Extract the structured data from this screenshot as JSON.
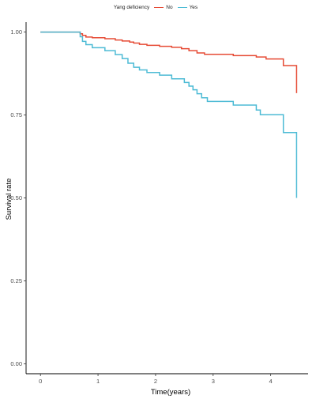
{
  "chart_data": {
    "type": "line",
    "xlabel": "Time(years)",
    "ylabel": "Survival rate",
    "xlim": [
      -0.25,
      4.65
    ],
    "ylim": [
      -0.03,
      1.03
    ],
    "x_ticks": [
      0,
      1,
      2,
      3,
      4
    ],
    "y_ticks": [
      0.0,
      0.25,
      0.5,
      0.75,
      1.0
    ],
    "y_tick_labels": [
      "0.00",
      "0.25",
      "0.50",
      "0.75",
      "1.00"
    ],
    "grid": false,
    "legend": {
      "title": "Yang deficiency",
      "placement": "top"
    },
    "series": [
      {
        "name": "No",
        "color": "#E64B35",
        "step": true,
        "x": [
          0,
          0.69,
          0.73,
          0.79,
          0.9,
          1.12,
          1.3,
          1.42,
          1.55,
          1.62,
          1.72,
          1.85,
          2.07,
          2.28,
          2.45,
          2.58,
          2.72,
          2.85,
          3.35,
          3.75,
          3.92,
          4.22,
          4.45,
          4.45
        ],
        "y": [
          1.0,
          0.995,
          0.99,
          0.985,
          0.983,
          0.98,
          0.976,
          0.973,
          0.97,
          0.967,
          0.963,
          0.96,
          0.957,
          0.954,
          0.95,
          0.944,
          0.937,
          0.933,
          0.929,
          0.925,
          0.919,
          0.899,
          0.816,
          0.816
        ]
      },
      {
        "name": "Yes",
        "color": "#4DBBD5",
        "step": true,
        "x": [
          0,
          0.69,
          0.73,
          0.79,
          0.9,
          1.12,
          1.3,
          1.42,
          1.52,
          1.62,
          1.72,
          1.85,
          2.07,
          2.28,
          2.5,
          2.58,
          2.65,
          2.72,
          2.8,
          2.9,
          3.35,
          3.75,
          3.82,
          4.22,
          4.45,
          4.45
        ],
        "y": [
          1.0,
          0.986,
          0.972,
          0.962,
          0.953,
          0.944,
          0.932,
          0.92,
          0.906,
          0.894,
          0.886,
          0.878,
          0.87,
          0.859,
          0.848,
          0.837,
          0.826,
          0.814,
          0.802,
          0.791,
          0.78,
          0.765,
          0.751,
          0.697,
          0.5,
          0.5
        ]
      }
    ]
  }
}
